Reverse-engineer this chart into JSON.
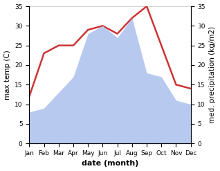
{
  "months": [
    "Jan",
    "Feb",
    "Mar",
    "Apr",
    "May",
    "Jun",
    "Jul",
    "Aug",
    "Sep",
    "Oct",
    "Nov",
    "Dec"
  ],
  "temperature": [
    12,
    23,
    25,
    25,
    29,
    30,
    28,
    32,
    35,
    25,
    15,
    14
  ],
  "precipitation": [
    8,
    9,
    13,
    17,
    28,
    30,
    27,
    32,
    18,
    17,
    11,
    10
  ],
  "temp_color": "#cc3333",
  "precip_color": "#b8c9f0",
  "background_color": "#ffffff",
  "ylabel_left": "max temp (C)",
  "ylabel_right": "med. precipitation (kg/m2)",
  "xlabel": "date (month)",
  "ylim": [
    0,
    35
  ],
  "label_fontsize": 7.5,
  "tick_fontsize": 6.5,
  "xlabel_fontsize": 8
}
